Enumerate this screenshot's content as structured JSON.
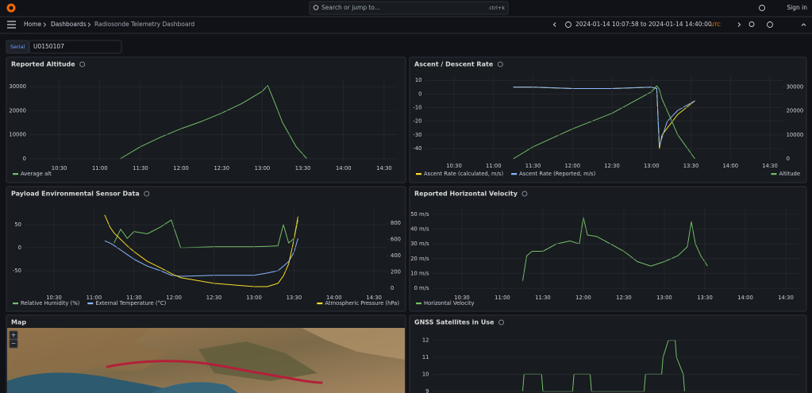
{
  "topbar": {
    "search": "Search or jump to...",
    "shortcut": "ctrl+k",
    "sign_in": "Sign in"
  },
  "breadcrumb": {
    "home": "Home",
    "dashboards": "Dashboards",
    "current": "Radiosonde Telemetry Dashboard"
  },
  "time_range": {
    "range": "2024-01-14 10:07:58 to 2024-01-14 14:40:00",
    "timezone": "UTC"
  },
  "variable": {
    "label": "Serial",
    "value": "U0150107"
  },
  "map": {
    "title": "Map",
    "zoom_in": "+",
    "zoom_out": "−"
  },
  "chart_data": [
    {
      "type": "line",
      "title": "Reported Altitude",
      "grid": true,
      "legend": "bottom",
      "x": [
        "11:15",
        "11:30",
        "11:45",
        "12:00",
        "12:15",
        "12:30",
        "12:45",
        "13:00",
        "13:04",
        "13:08",
        "13:15",
        "13:25",
        "13:33"
      ],
      "xlim": [
        "10:07:58",
        "14:40:00"
      ],
      "xticks": [
        "10:30",
        "11:00",
        "11:30",
        "12:00",
        "12:30",
        "13:00",
        "13:30",
        "14:00",
        "14:30"
      ],
      "ylim": [
        -1000,
        33000
      ],
      "yticks": [
        0,
        10000,
        20000,
        30000
      ],
      "series": [
        {
          "name": "Average alt",
          "color": "#73bf69",
          "values": [
            0,
            5000,
            9000,
            12500,
            15500,
            19000,
            23000,
            28000,
            30500,
            25000,
            15000,
            5000,
            0
          ]
        }
      ]
    },
    {
      "type": "line",
      "title": "Ascent / Descent Rate",
      "grid": true,
      "legend": "bottom",
      "x": [
        "11:15",
        "11:30",
        "12:00",
        "12:30",
        "13:00",
        "13:04",
        "13:06",
        "13:08",
        "13:12",
        "13:20",
        "13:33"
      ],
      "xlim": [
        "10:07:58",
        "14:40:00"
      ],
      "xticks": [
        "10:30",
        "11:00",
        "11:30",
        "12:00",
        "12:30",
        "13:00",
        "13:30",
        "14:00",
        "14:30"
      ],
      "ylim": [
        -47.5,
        13
      ],
      "yticks": [
        10,
        0,
        -10,
        -20,
        -30,
        -40
      ],
      "y2lim": [
        0,
        34500
      ],
      "y2ticks": [
        0,
        10000,
        20000,
        30000
      ],
      "series": [
        {
          "name": "Ascent Rate (calculated, m/s)",
          "color": "#fade2a",
          "values": [
            5,
            5,
            4,
            4,
            5,
            4,
            -40,
            -30,
            -25,
            -15,
            -5
          ]
        },
        {
          "name": "Ascent Rate (Reported, m/s)",
          "color": "#8ab8ff",
          "values": [
            5,
            5,
            4,
            4,
            5,
            4,
            -38,
            -32,
            -20,
            -12,
            -5
          ]
        },
        {
          "name": "Altitude",
          "color": "#73bf69",
          "axis": "y2",
          "values": [
            0,
            5000,
            12500,
            19000,
            28000,
            30500,
            29000,
            25000,
            20000,
            10000,
            0
          ]
        }
      ]
    },
    {
      "type": "line",
      "title": "Payload Environmental Sensor Data",
      "grid": true,
      "legend": "bottom",
      "x": [
        "11:08",
        "11:12",
        "11:15",
        "11:20",
        "11:25",
        "11:30",
        "11:40",
        "11:50",
        "11:58",
        "12:05",
        "12:30",
        "13:00",
        "13:10",
        "13:18",
        "13:22",
        "13:26",
        "13:30",
        "13:33"
      ],
      "xlim": [
        "10:07:58",
        "14:40:00"
      ],
      "xticks": [
        "10:30",
        "11:00",
        "11:30",
        "12:00",
        "12:30",
        "13:00",
        "13:30",
        "14:00",
        "14:30"
      ],
      "ylim": [
        -93,
        86
      ],
      "yticks": [
        50,
        0,
        -50
      ],
      "y2lim": [
        -29,
        985
      ],
      "y2ticks": [
        0,
        200,
        400,
        600,
        800
      ],
      "series": [
        {
          "name": "Relative Humidity (%)",
          "color": "#73bf69",
          "values": [
            null,
            null,
            10,
            40,
            20,
            35,
            30,
            45,
            60,
            0,
            2,
            2,
            3,
            4,
            50,
            10,
            20,
            60
          ]
        },
        {
          "name": "External Temperature (°C)",
          "color": "#8ab8ff",
          "values": [
            15,
            10,
            5,
            -5,
            -15,
            -25,
            -40,
            -50,
            -60,
            -62,
            -60,
            -60,
            -55,
            -50,
            -40,
            -30,
            -10,
            20
          ]
        },
        {
          "name": "Atmospheric Pressure (hPa)",
          "color": "#fade2a",
          "axis": "y2",
          "values": [
            900,
            750,
            680,
            600,
            520,
            450,
            330,
            250,
            180,
            130,
            60,
            20,
            20,
            60,
            150,
            300,
            600,
            880
          ]
        }
      ]
    },
    {
      "type": "line",
      "title": "Reported Horizontal Velocity",
      "grid": true,
      "legend": "bottom",
      "x": [
        "11:15",
        "11:18",
        "11:22",
        "11:30",
        "11:40",
        "11:50",
        "11:57",
        "12:00",
        "12:03",
        "12:10",
        "12:20",
        "12:30",
        "12:40",
        "12:50",
        "13:00",
        "13:10",
        "13:17",
        "13:20",
        "13:23",
        "13:27",
        "13:32"
      ],
      "xlim": [
        "10:07:58",
        "14:40:00"
      ],
      "xticks": [
        "10:30",
        "11:00",
        "11:30",
        "12:00",
        "12:30",
        "13:00",
        "13:30",
        "14:00",
        "14:30"
      ],
      "ylim": [
        -1.6,
        54.3
      ],
      "yticks": [
        {
          "value": 0,
          "label": "0 m/s"
        },
        {
          "value": 10,
          "label": "10 m/s"
        },
        {
          "value": 20,
          "label": "20 m/s"
        },
        {
          "value": 30,
          "label": "30 m/s"
        },
        {
          "value": 40,
          "label": "40 m/s"
        },
        {
          "value": 50,
          "label": "50 m/s"
        }
      ],
      "series": [
        {
          "name": "Horizontal Velocity",
          "color": "#73bf69",
          "values": [
            5,
            22,
            25,
            25,
            30,
            32,
            30,
            48,
            36,
            35,
            30,
            25,
            18,
            15,
            18,
            22,
            28,
            45,
            30,
            22,
            15
          ]
        }
      ]
    },
    {
      "type": "line",
      "title": "GNSS Satellites in Use",
      "grid": true,
      "x": [
        "11:15",
        "11:16",
        "11:29",
        "11:30",
        "11:52",
        "11:53",
        "12:05",
        "12:06",
        "12:45",
        "12:46",
        "12:58",
        "12:59",
        "13:03",
        "13:08",
        "13:09",
        "13:14",
        "13:15"
      ],
      "xlim": [
        "10:07:58",
        "14:40:00"
      ],
      "ylim": [
        7.5,
        12.4
      ],
      "yticks": [
        9,
        10,
        11,
        12
      ],
      "series": [
        {
          "color": "#73bf69",
          "values": [
            9,
            10,
            10,
            9,
            9,
            10,
            10,
            9,
            9,
            10,
            10,
            11,
            12,
            12,
            11,
            10,
            9
          ]
        }
      ]
    }
  ]
}
